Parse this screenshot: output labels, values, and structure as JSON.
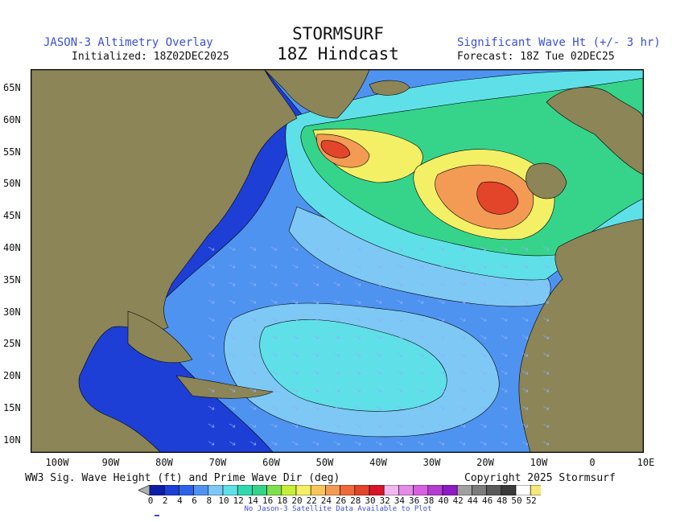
{
  "header": {
    "brand": "STORMSURF",
    "subtitle": "18Z Hindcast",
    "overlay_title": "JASON-3 Altimetry Overlay",
    "initialized": "Initialized: 18Z02DEC2025",
    "parameter": "Significant Wave Ht (+/- 3 hr)",
    "forecast": "Forecast: 18Z Tue 02DEC25"
  },
  "map": {
    "lat_labels": [
      "65N",
      "60N",
      "55N",
      "50N",
      "45N",
      "40N",
      "35N",
      "30N",
      "25N",
      "20N",
      "15N",
      "10N"
    ],
    "lon_labels": [
      "100W",
      "90W",
      "80W",
      "70W",
      "60W",
      "50W",
      "40W",
      "30W",
      "20W",
      "10W",
      "0",
      "10E"
    ],
    "colors": {
      "land": "#8b8557",
      "ocean_deep": "#1d3fd6",
      "ocean_mid": "#4f93f0",
      "ocean_light": "#7ec8f5",
      "cyan": "#5fe0e8",
      "green": "#35d48a",
      "yellow": "#f3f066",
      "orange": "#f39a55",
      "red": "#e2452a"
    }
  },
  "footer": {
    "legend_label": "WW3 Sig. Wave Height (ft) and Prime Wave Dir (deg)",
    "copyright": "Copyright 2025 Stormsurf",
    "note": "No Jason-3 Satellite Data Available to Plot"
  },
  "colorbar": {
    "ticks": [
      "0",
      "2",
      "4",
      "6",
      "8",
      "10",
      "12",
      "14",
      "16",
      "18",
      "20",
      "22",
      "24",
      "26",
      "28",
      "30",
      "32",
      "34",
      "36",
      "38",
      "40",
      "42",
      "44",
      "46",
      "48",
      "50",
      "52"
    ],
    "colors": [
      "#0b1fa6",
      "#1d3fd6",
      "#2d63e8",
      "#4f93f0",
      "#7ec8f5",
      "#5fe0e8",
      "#30d9b0",
      "#35d48a",
      "#7fe04e",
      "#c8ee3a",
      "#f3f066",
      "#f6c65a",
      "#f39a55",
      "#ef6a3a",
      "#e2452a",
      "#d8142a",
      "#f0b8f0",
      "#e48ce8",
      "#d860e0",
      "#b43cd0",
      "#8e1ac4",
      "#a0a0a0",
      "#7c7c7c",
      "#5a5a5a",
      "#3a3a3a",
      "#ffffff",
      "#f5e87a"
    ]
  }
}
